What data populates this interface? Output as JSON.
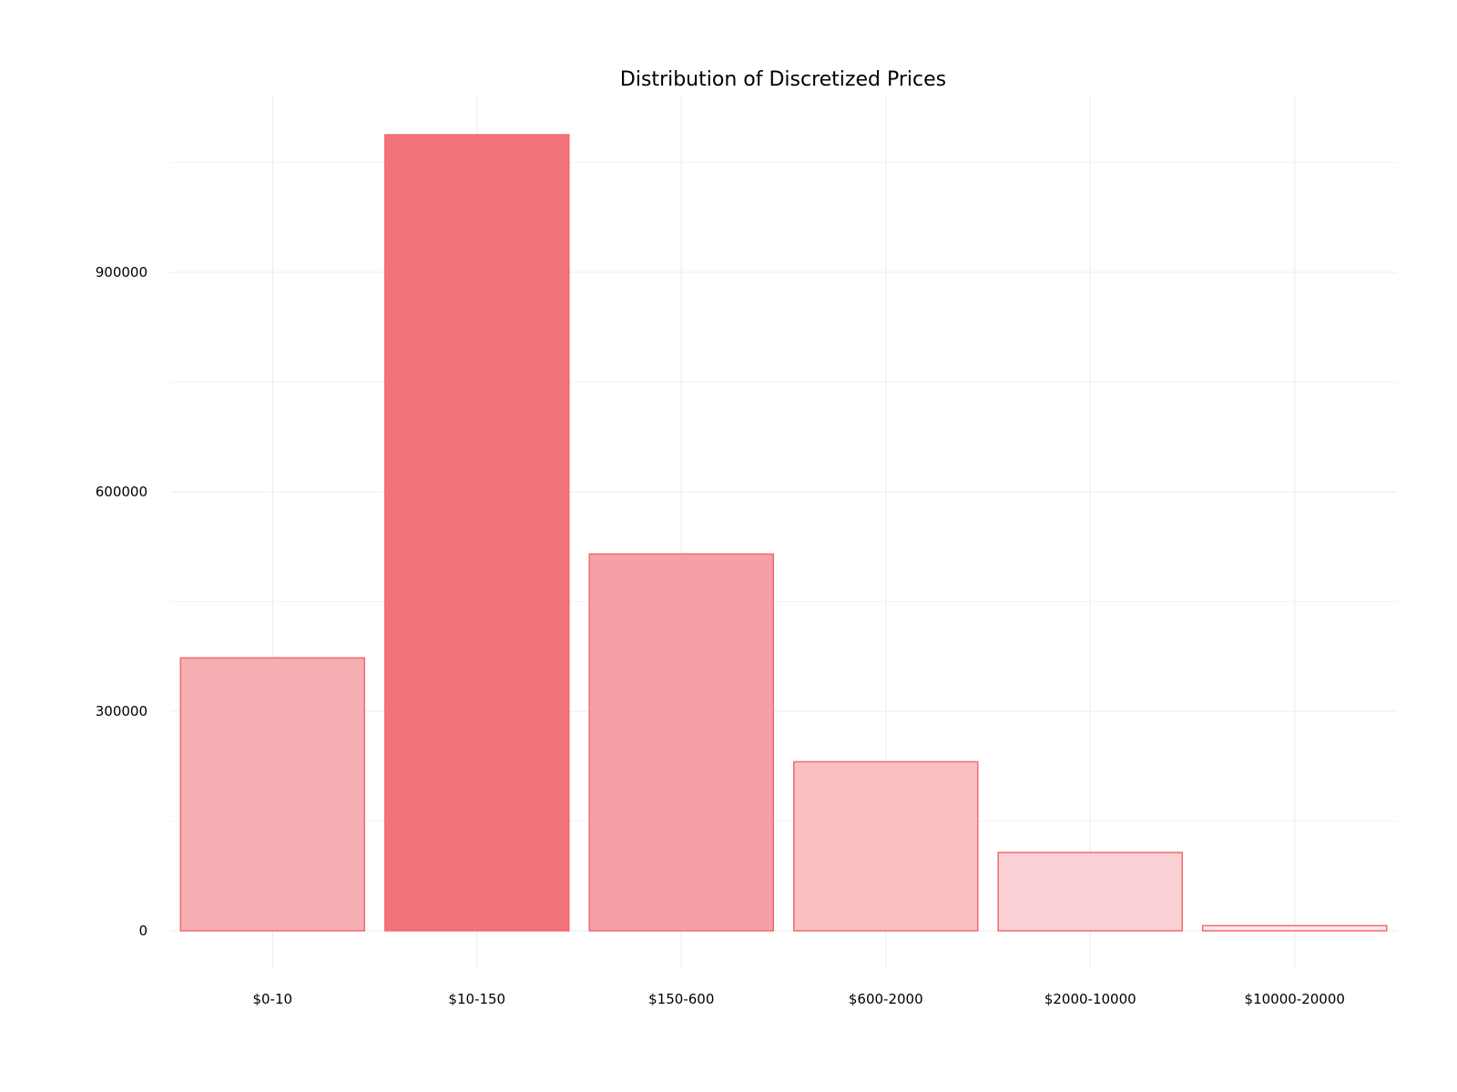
{
  "chart_data": {
    "type": "bar",
    "title": "Distribution of Discretized Prices",
    "xlabel": "",
    "ylabel": "",
    "categories": [
      "$0-10",
      "$10-150",
      "$150-600",
      "$600-2000",
      "$2000-10000",
      "$10000-20000"
    ],
    "values": [
      373000,
      1088000,
      515000,
      231000,
      107000,
      7000
    ],
    "y_ticks": [
      0,
      300000,
      600000,
      900000
    ],
    "y_tick_labels": [
      "0",
      "300000",
      "600000",
      "900000"
    ],
    "ylim": [
      0,
      1140000
    ],
    "grid": true,
    "legend": "none",
    "colors": {
      "bar_stroke": "#f26a70",
      "fill_high": "#f0666f",
      "fill_low": "#fdf1f2"
    }
  }
}
